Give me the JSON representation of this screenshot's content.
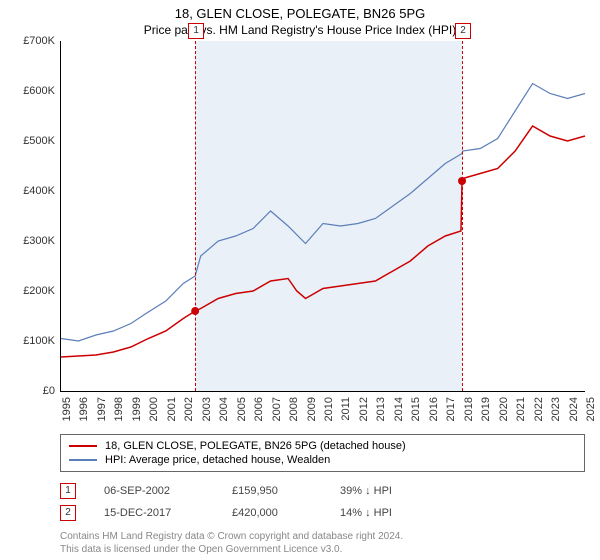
{
  "title": "18, GLEN CLOSE, POLEGATE, BN26 5PG",
  "subtitle": "Price paid vs. HM Land Registry's House Price Index (HPI)",
  "chart": {
    "type": "line",
    "ylim": [
      0,
      700000
    ],
    "ytick_step": 100000,
    "xlim": [
      1995,
      2025
    ],
    "xtick_step": 1,
    "background_color": "#ffffff",
    "grid_color": "#e0e0e0",
    "shaded_color": "#eaf0f8",
    "shaded_range": [
      2002.68,
      2017.96
    ],
    "series": [
      {
        "name": "property",
        "label": "18, GLEN CLOSE, POLEGATE, BN26 5PG (detached house)",
        "color": "#cc0000",
        "line_width": 1.5,
        "points": [
          [
            1995,
            68000
          ],
          [
            1996,
            70000
          ],
          [
            1997,
            72000
          ],
          [
            1998,
            78000
          ],
          [
            1999,
            88000
          ],
          [
            2000,
            105000
          ],
          [
            2001,
            120000
          ],
          [
            2002,
            145000
          ],
          [
            2002.68,
            159950
          ],
          [
            2003,
            165000
          ],
          [
            2004,
            185000
          ],
          [
            2005,
            195000
          ],
          [
            2006,
            200000
          ],
          [
            2007,
            220000
          ],
          [
            2008,
            225000
          ],
          [
            2008.5,
            200000
          ],
          [
            2009,
            185000
          ],
          [
            2010,
            205000
          ],
          [
            2011,
            210000
          ],
          [
            2012,
            215000
          ],
          [
            2013,
            220000
          ],
          [
            2014,
            240000
          ],
          [
            2015,
            260000
          ],
          [
            2016,
            290000
          ],
          [
            2017,
            310000
          ],
          [
            2017.9,
            320000
          ],
          [
            2017.96,
            420000
          ],
          [
            2018,
            425000
          ],
          [
            2019,
            435000
          ],
          [
            2020,
            445000
          ],
          [
            2021,
            480000
          ],
          [
            2022,
            530000
          ],
          [
            2023,
            510000
          ],
          [
            2024,
            500000
          ],
          [
            2025,
            510000
          ]
        ]
      },
      {
        "name": "hpi",
        "label": "HPI: Average price, detached house, Wealden",
        "color": "#5b7fb8",
        "line_width": 1.2,
        "points": [
          [
            1995,
            105000
          ],
          [
            1996,
            100000
          ],
          [
            1997,
            112000
          ],
          [
            1998,
            120000
          ],
          [
            1999,
            135000
          ],
          [
            2000,
            158000
          ],
          [
            2001,
            180000
          ],
          [
            2002,
            215000
          ],
          [
            2002.68,
            230000
          ],
          [
            2003,
            270000
          ],
          [
            2004,
            300000
          ],
          [
            2005,
            310000
          ],
          [
            2006,
            325000
          ],
          [
            2007,
            360000
          ],
          [
            2008,
            330000
          ],
          [
            2009,
            295000
          ],
          [
            2010,
            335000
          ],
          [
            2011,
            330000
          ],
          [
            2012,
            335000
          ],
          [
            2013,
            345000
          ],
          [
            2014,
            370000
          ],
          [
            2015,
            395000
          ],
          [
            2016,
            425000
          ],
          [
            2017,
            455000
          ],
          [
            2017.96,
            475000
          ],
          [
            2018,
            480000
          ],
          [
            2019,
            485000
          ],
          [
            2020,
            505000
          ],
          [
            2021,
            560000
          ],
          [
            2022,
            615000
          ],
          [
            2023,
            595000
          ],
          [
            2024,
            585000
          ],
          [
            2025,
            595000
          ]
        ]
      }
    ],
    "events": [
      {
        "id": "1",
        "x": 2002.68,
        "date": "06-SEP-2002",
        "price": "£159,950",
        "delta": "39%",
        "note": "↓ HPI",
        "dot_y": 159950
      },
      {
        "id": "2",
        "x": 2017.96,
        "date": "15-DEC-2017",
        "price": "£420,000",
        "delta": "14%",
        "note": "↓ HPI",
        "dot_y": 420000
      }
    ]
  },
  "y_labels": [
    "£0",
    "£100K",
    "£200K",
    "£300K",
    "£400K",
    "£500K",
    "£600K",
    "£700K"
  ],
  "footer1": "Contains HM Land Registry data © Crown copyright and database right 2024.",
  "footer2": "This data is licensed under the Open Government Licence v3.0."
}
